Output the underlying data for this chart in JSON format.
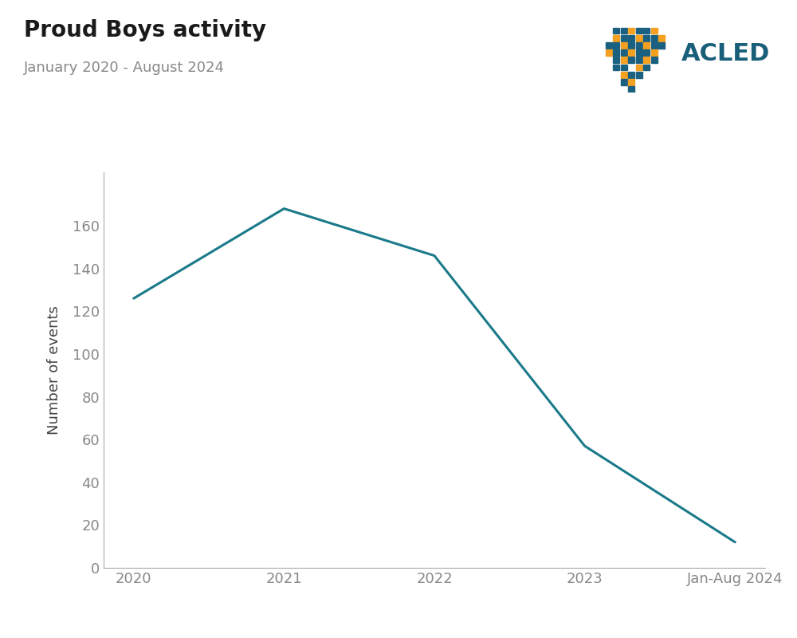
{
  "title": "Proud Boys activity",
  "subtitle": "January 2020 - August 2024",
  "ylabel": "Number of events",
  "x_labels": [
    "2020",
    "2021",
    "2022",
    "2023",
    "Jan-Aug 2024"
  ],
  "x_values": [
    0,
    1,
    2,
    3,
    4
  ],
  "y_values": [
    126,
    168,
    146,
    57,
    12
  ],
  "line_color": "#1a7a8a",
  "line_width": 2.2,
  "ylim": [
    0,
    185
  ],
  "yticks": [
    0,
    20,
    40,
    60,
    80,
    100,
    120,
    140,
    160
  ],
  "title_fontsize": 20,
  "subtitle_fontsize": 13,
  "ylabel_fontsize": 13,
  "tick_fontsize": 13,
  "title_color": "#1a1a1a",
  "subtitle_color": "#888888",
  "ylabel_color": "#444444",
  "tick_color": "#888888",
  "background_color": "#ffffff",
  "spine_color": "#aaaaaa",
  "acled_color": "#1a5f7a",
  "acled_fontsize": 22
}
